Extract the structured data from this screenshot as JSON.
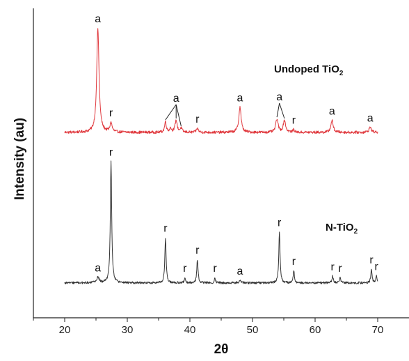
{
  "chart_data": {
    "type": "line",
    "title": "",
    "xlabel": "2θ",
    "ylabel": "Intensity (au)",
    "xlim": [
      15,
      75
    ],
    "x_ticks": [
      20,
      30,
      40,
      50,
      60,
      70
    ],
    "y_ticks_shown": false,
    "grid": false,
    "series": [
      {
        "name_text": "Undoped TiO",
        "name_subscript": "2",
        "color": "#e0393e",
        "baseline": 0.0,
        "noise": 0.01,
        "peaks": [
          {
            "x": 25.3,
            "h": 0.78,
            "w": 0.22
          },
          {
            "x": 27.4,
            "h": 0.07,
            "w": 0.2
          },
          {
            "x": 36.1,
            "h": 0.08,
            "w": 0.16
          },
          {
            "x": 36.9,
            "h": 0.03,
            "w": 0.18
          },
          {
            "x": 37.8,
            "h": 0.09,
            "w": 0.2
          },
          {
            "x": 38.6,
            "h": 0.03,
            "w": 0.18
          },
          {
            "x": 41.2,
            "h": 0.03,
            "w": 0.18
          },
          {
            "x": 48.0,
            "h": 0.19,
            "w": 0.22
          },
          {
            "x": 53.9,
            "h": 0.1,
            "w": 0.22
          },
          {
            "x": 55.1,
            "h": 0.09,
            "w": 0.22
          },
          {
            "x": 56.6,
            "h": 0.02,
            "w": 0.16
          },
          {
            "x": 62.7,
            "h": 0.09,
            "w": 0.22
          },
          {
            "x": 68.8,
            "h": 0.04,
            "w": 0.22
          }
        ]
      },
      {
        "name_text": "N-TiO",
        "name_subscript": "2",
        "color": "#333333",
        "baseline": 0.0,
        "noise": 0.008,
        "peaks": [
          {
            "x": 25.3,
            "h": 0.04,
            "w": 0.25
          },
          {
            "x": 27.4,
            "h": 0.88,
            "w": 0.13
          },
          {
            "x": 36.1,
            "h": 0.33,
            "w": 0.12
          },
          {
            "x": 39.2,
            "h": 0.04,
            "w": 0.11
          },
          {
            "x": 41.2,
            "h": 0.17,
            "w": 0.12
          },
          {
            "x": 44.0,
            "h": 0.04,
            "w": 0.11
          },
          {
            "x": 48.0,
            "h": 0.02,
            "w": 0.18
          },
          {
            "x": 54.3,
            "h": 0.37,
            "w": 0.12
          },
          {
            "x": 56.6,
            "h": 0.09,
            "w": 0.12
          },
          {
            "x": 62.8,
            "h": 0.05,
            "w": 0.12
          },
          {
            "x": 64.0,
            "h": 0.04,
            "w": 0.12
          },
          {
            "x": 69.0,
            "h": 0.1,
            "w": 0.12
          },
          {
            "x": 69.8,
            "h": 0.05,
            "w": 0.11
          }
        ]
      }
    ],
    "annotations": [
      {
        "series": 0,
        "text": "a",
        "x": 25.3
      },
      {
        "series": 0,
        "text": "r",
        "x": 27.4
      },
      {
        "series": 0,
        "text": "r",
        "x": 41.2
      },
      {
        "series": 0,
        "text": "a",
        "x": 48.0
      },
      {
        "series": 0,
        "text": "r",
        "x": 56.6
      },
      {
        "series": 0,
        "text": "a",
        "x": 62.7
      },
      {
        "series": 0,
        "text": "a",
        "x": 68.8
      },
      {
        "series": 0,
        "text": "a",
        "x": 37.8,
        "pointers": [
          36.1,
          37.8,
          38.6
        ]
      },
      {
        "series": 0,
        "text": "a",
        "x": 54.3,
        "pointers": [
          53.9,
          55.1
        ]
      },
      {
        "series": 1,
        "text": "a",
        "x": 25.3
      },
      {
        "series": 1,
        "text": "r",
        "x": 27.4
      },
      {
        "series": 1,
        "text": "r",
        "x": 36.1
      },
      {
        "series": 1,
        "text": "r",
        "x": 39.2
      },
      {
        "series": 1,
        "text": "r",
        "x": 41.2
      },
      {
        "series": 1,
        "text": "r",
        "x": 44.0
      },
      {
        "series": 1,
        "text": "a",
        "x": 48.0
      },
      {
        "series": 1,
        "text": "r",
        "x": 54.3
      },
      {
        "series": 1,
        "text": "r",
        "x": 56.6
      },
      {
        "series": 1,
        "text": "r",
        "x": 62.8
      },
      {
        "series": 1,
        "text": "r",
        "x": 64.0
      },
      {
        "series": 1,
        "text": "r",
        "x": 69.0
      },
      {
        "series": 1,
        "text": "r",
        "x": 69.8
      }
    ]
  }
}
